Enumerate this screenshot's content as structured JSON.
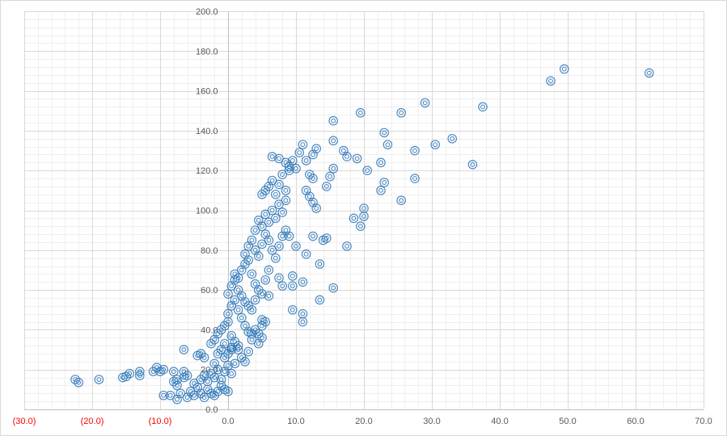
{
  "chart_data": {
    "type": "scatter",
    "title": "",
    "xlabel": "",
    "ylabel": "",
    "xlim": [
      -30,
      70
    ],
    "ylim": [
      0,
      200
    ],
    "x_major_step": 10,
    "x_minor_step": 2,
    "y_major_step": 20,
    "y_minor_step": 4,
    "grid": true,
    "legend": "none",
    "marker": "double-circle",
    "colors": {
      "marker": "#2e75b6",
      "major_grid": "#d9d9d9",
      "minor_grid": "#efefef",
      "axis": "#bfbfbf",
      "tick_text": "#595959",
      "negative_tick_text": "#ff0000"
    },
    "x_tick_labels": [
      "(30.0)",
      "(20.0)",
      "(10.0)",
      "0.0",
      "10.0",
      "20.0",
      "30.0",
      "40.0",
      "50.0",
      "60.0",
      "70.0"
    ],
    "y_tick_labels": [
      "0.0",
      "20.0",
      "40.0",
      "60.0",
      "80.0",
      "100.0",
      "120.0",
      "140.0",
      "160.0",
      "180.0",
      "200.0"
    ],
    "points": [
      [
        -22.5,
        15
      ],
      [
        -22,
        13.5
      ],
      [
        -19,
        15
      ],
      [
        -15.5,
        16
      ],
      [
        -15,
        16.5
      ],
      [
        -14.5,
        18
      ],
      [
        -13,
        17
      ],
      [
        -13,
        19
      ],
      [
        -11,
        19
      ],
      [
        -10.5,
        21
      ],
      [
        -10,
        19
      ],
      [
        -9.5,
        20
      ],
      [
        -8,
        19
      ],
      [
        -8,
        14
      ],
      [
        -7.5,
        12
      ],
      [
        -7.5,
        15
      ],
      [
        -6.5,
        16
      ],
      [
        -6.5,
        19
      ],
      [
        -6.5,
        30
      ],
      [
        -6,
        17
      ],
      [
        -9.5,
        7
      ],
      [
        -8.5,
        7
      ],
      [
        -7.5,
        5
      ],
      [
        -7,
        8
      ],
      [
        -6,
        6
      ],
      [
        -5.5,
        9
      ],
      [
        -5,
        7
      ],
      [
        -4.5,
        11
      ],
      [
        -4,
        8
      ],
      [
        -3.5,
        6
      ],
      [
        -3,
        10
      ],
      [
        -2.5,
        8
      ],
      [
        -2,
        7
      ],
      [
        -1.5,
        9
      ],
      [
        -1,
        12
      ],
      [
        -0.5,
        10
      ],
      [
        0,
        9
      ],
      [
        -5,
        13
      ],
      [
        -4,
        15
      ],
      [
        -3.5,
        17
      ],
      [
        -3,
        14
      ],
      [
        -2.5,
        18
      ],
      [
        -2,
        16
      ],
      [
        -1.5,
        20
      ],
      [
        -1,
        15
      ],
      [
        -0.5,
        19
      ],
      [
        0,
        22
      ],
      [
        0.5,
        18
      ],
      [
        -4.5,
        27
      ],
      [
        -4,
        28
      ],
      [
        -3.5,
        26
      ],
      [
        -2,
        23
      ],
      [
        -1.5,
        28
      ],
      [
        -1,
        30
      ],
      [
        -0.5,
        33
      ],
      [
        0,
        28
      ],
      [
        0.5,
        31
      ],
      [
        -2.5,
        33
      ],
      [
        -2,
        35
      ],
      [
        -1.5,
        38
      ],
      [
        -1,
        40
      ],
      [
        -0.5,
        42
      ],
      [
        0,
        44
      ],
      [
        0.5,
        37
      ],
      [
        1,
        34
      ],
      [
        1.5,
        30
      ],
      [
        2,
        26
      ],
      [
        2.5,
        24
      ],
      [
        3,
        29
      ],
      [
        0,
        48
      ],
      [
        0.5,
        52
      ],
      [
        1,
        55
      ],
      [
        1.5,
        50
      ],
      [
        2,
        46
      ],
      [
        2.5,
        42
      ],
      [
        3,
        39
      ],
      [
        3.5,
        35
      ],
      [
        4,
        40
      ],
      [
        4.5,
        33
      ],
      [
        5,
        36
      ],
      [
        5.5,
        44
      ],
      [
        0,
        58
      ],
      [
        0.5,
        62
      ],
      [
        1,
        65
      ],
      [
        1.5,
        60
      ],
      [
        2,
        57
      ],
      [
        2.5,
        54
      ],
      [
        3,
        52
      ],
      [
        3.5,
        50
      ],
      [
        4,
        55
      ],
      [
        1,
        68
      ],
      [
        1.5,
        66
      ],
      [
        2,
        70
      ],
      [
        2.5,
        73
      ],
      [
        3,
        75
      ],
      [
        3.5,
        68
      ],
      [
        4,
        63
      ],
      [
        4.5,
        60
      ],
      [
        5,
        58
      ],
      [
        5.5,
        65
      ],
      [
        6,
        70
      ],
      [
        2.5,
        78
      ],
      [
        3,
        82
      ],
      [
        3.5,
        85
      ],
      [
        4,
        80
      ],
      [
        4.5,
        77
      ],
      [
        5,
        83
      ],
      [
        5.5,
        88
      ],
      [
        6,
        85
      ],
      [
        6.5,
        80
      ],
      [
        7,
        76
      ],
      [
        7.5,
        82
      ],
      [
        8,
        87
      ],
      [
        8.5,
        90
      ],
      [
        4,
        90
      ],
      [
        4.5,
        95
      ],
      [
        5,
        92
      ],
      [
        5.5,
        98
      ],
      [
        6,
        94
      ],
      [
        6.5,
        100
      ],
      [
        7,
        96
      ],
      [
        7.5,
        103
      ],
      [
        8,
        99
      ],
      [
        8.5,
        105
      ],
      [
        5,
        108
      ],
      [
        5.5,
        110
      ],
      [
        6,
        112
      ],
      [
        6.5,
        115
      ],
      [
        7,
        108
      ],
      [
        7.5,
        113
      ],
      [
        8,
        118
      ],
      [
        8.5,
        110
      ],
      [
        9,
        122
      ],
      [
        6.5,
        127
      ],
      [
        7.5,
        126
      ],
      [
        8.5,
        124
      ],
      [
        9,
        120
      ],
      [
        9.5,
        125
      ],
      [
        10,
        121
      ],
      [
        10.5,
        129
      ],
      [
        11,
        133
      ],
      [
        11.5,
        125
      ],
      [
        12.5,
        128
      ],
      [
        13,
        131
      ],
      [
        12,
        118
      ],
      [
        12.5,
        116
      ],
      [
        11.5,
        110
      ],
      [
        12,
        107
      ],
      [
        12.5,
        104
      ],
      [
        13,
        101
      ],
      [
        14.5,
        112
      ],
      [
        15,
        117
      ],
      [
        15.5,
        121
      ],
      [
        15.5,
        135
      ],
      [
        15.5,
        145
      ],
      [
        17,
        130
      ],
      [
        17.5,
        127
      ],
      [
        19,
        126
      ],
      [
        19.5,
        149
      ],
      [
        20.5,
        120
      ],
      [
        22.5,
        124
      ],
      [
        22.5,
        110
      ],
      [
        23,
        114
      ],
      [
        23.5,
        133
      ],
      [
        23,
        139
      ],
      [
        25.5,
        149
      ],
      [
        25.5,
        105
      ],
      [
        27.5,
        116
      ],
      [
        27.5,
        130
      ],
      [
        29,
        154
      ],
      [
        30.5,
        133
      ],
      [
        33,
        136
      ],
      [
        36,
        123
      ],
      [
        37.5,
        152
      ],
      [
        47.5,
        165
      ],
      [
        49.5,
        171
      ],
      [
        62,
        169
      ],
      [
        18.5,
        96
      ],
      [
        19.5,
        92
      ],
      [
        20,
        97
      ],
      [
        20,
        101
      ],
      [
        17.5,
        82
      ],
      [
        14,
        85
      ],
      [
        14.5,
        86
      ],
      [
        13.5,
        73
      ],
      [
        11.5,
        78
      ],
      [
        10,
        82
      ],
      [
        9,
        87
      ],
      [
        12.5,
        87
      ],
      [
        9.5,
        67
      ],
      [
        9.5,
        62
      ],
      [
        9.5,
        50
      ],
      [
        11,
        48
      ],
      [
        11,
        44
      ],
      [
        11,
        64
      ],
      [
        13.5,
        55
      ],
      [
        15.5,
        61
      ],
      [
        8,
        62
      ],
      [
        7.5,
        66
      ],
      [
        6,
        57
      ],
      [
        5,
        45
      ],
      [
        5,
        42
      ],
      [
        4.5,
        38
      ],
      [
        3.5,
        38
      ],
      [
        1.5,
        32
      ],
      [
        0.5,
        30
      ],
      [
        -0.5,
        26
      ],
      [
        1,
        23
      ]
    ]
  }
}
